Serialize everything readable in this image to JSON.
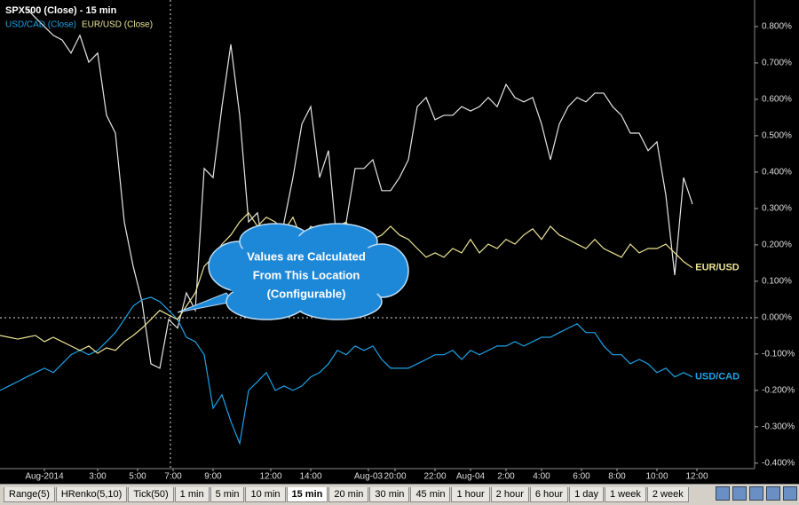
{
  "chart_data": {
    "type": "line",
    "title": "SPX500 (Close) - 15 min",
    "annotation": [
      "Values are Calculated",
      "From This Location",
      "(Configurable)"
    ],
    "x": [
      0,
      2,
      4,
      6,
      8,
      10,
      12,
      14,
      16,
      18,
      20,
      22,
      24,
      26,
      28,
      30,
      32,
      34,
      36,
      38,
      40,
      42,
      44,
      46,
      48,
      50,
      52,
      54,
      56,
      58,
      60,
      62,
      64,
      66,
      68,
      70,
      72,
      74,
      76,
      78,
      80,
      82,
      84,
      86,
      88,
      90,
      92,
      94,
      96,
      98,
      100,
      102,
      104,
      106,
      108,
      110,
      112,
      114,
      116,
      118,
      120,
      122,
      124,
      126,
      128,
      130,
      132,
      134,
      136,
      138,
      140,
      142,
      144,
      146,
      148,
      150,
      152,
      154,
      156
    ],
    "series": [
      {
        "color": "#e6e6e6",
        "values": [
          null,
          null,
          null,
          0.849,
          0.824,
          0.8,
          0.776,
          0.763,
          0.727,
          0.776,
          0.702,
          0.727,
          0.556,
          0.507,
          0.263,
          0.141,
          0.044,
          -0.127,
          -0.139,
          -0.005,
          -0.029,
          0.068,
          0.02,
          0.41,
          0.385,
          0.58,
          0.751,
          0.556,
          0.263,
          0.288,
          0.141,
          0.068,
          0.263,
          0.385,
          0.532,
          0.58,
          0.385,
          0.459,
          0.19,
          0.263,
          0.41,
          0.41,
          0.434,
          0.349,
          0.349,
          0.385,
          0.434,
          0.58,
          0.605,
          0.544,
          0.556,
          0.556,
          0.58,
          0.568,
          0.58,
          0.605,
          0.58,
          0.641,
          0.605,
          0.593,
          0.605,
          0.532,
          0.434,
          0.532,
          0.58,
          0.605,
          0.593,
          0.617,
          0.617,
          0.58,
          0.556,
          0.507,
          0.507,
          0.459,
          0.483,
          0.337,
          0.117,
          0.385,
          0.312
        ]
      },
      {
        "name": "USD/CAD (Close)",
        "end_label": "USD/CAD",
        "color": "#1fa3e8",
        "values": [
          -0.2,
          -0.188,
          -0.176,
          -0.163,
          -0.151,
          -0.139,
          -0.151,
          -0.127,
          -0.102,
          -0.09,
          -0.102,
          -0.09,
          -0.066,
          -0.041,
          -0.005,
          0.032,
          0.049,
          0.056,
          0.044,
          0.02,
          -0.005,
          -0.054,
          -0.066,
          -0.102,
          -0.249,
          -0.212,
          -0.285,
          -0.346,
          -0.2,
          -0.176,
          -0.151,
          -0.2,
          -0.188,
          -0.2,
          -0.188,
          -0.163,
          -0.151,
          -0.127,
          -0.09,
          -0.102,
          -0.078,
          -0.09,
          -0.078,
          -0.115,
          -0.139,
          -0.139,
          -0.139,
          -0.127,
          -0.115,
          -0.102,
          -0.102,
          -0.09,
          -0.115,
          -0.09,
          -0.102,
          -0.09,
          -0.078,
          -0.078,
          -0.066,
          -0.078,
          -0.066,
          -0.054,
          -0.054,
          -0.041,
          -0.029,
          -0.017,
          -0.041,
          -0.041,
          -0.078,
          -0.102,
          -0.102,
          -0.127,
          -0.115,
          -0.127,
          -0.151,
          -0.139,
          -0.163,
          -0.151,
          -0.163
        ]
      },
      {
        "name": "EUR/USD (Close)",
        "end_label": "EUR/USD",
        "color": "#ece494",
        "values": [
          -0.049,
          -0.054,
          -0.059,
          -0.054,
          -0.049,
          -0.066,
          -0.054,
          -0.066,
          -0.078,
          -0.09,
          -0.078,
          -0.098,
          -0.083,
          -0.09,
          -0.066,
          -0.049,
          -0.029,
          -0.005,
          0.02,
          0.007,
          -0.005,
          0.032,
          0.068,
          0.141,
          0.166,
          0.202,
          0.227,
          0.263,
          0.288,
          0.251,
          0.276,
          0.263,
          0.239,
          0.276,
          0.215,
          0.251,
          0.239,
          0.202,
          0.251,
          0.263,
          0.215,
          0.202,
          0.215,
          0.227,
          0.251,
          0.227,
          0.215,
          0.19,
          0.166,
          0.178,
          0.166,
          0.19,
          0.178,
          0.215,
          0.178,
          0.202,
          0.19,
          0.215,
          0.202,
          0.227,
          0.244,
          0.215,
          0.251,
          0.227,
          0.215,
          0.202,
          0.19,
          0.215,
          0.19,
          0.178,
          0.166,
          0.202,
          0.178,
          0.19,
          0.19,
          0.202,
          0.178,
          0.154,
          0.137
        ]
      }
    ],
    "xlim": [
      0,
      170
    ],
    "xticks": [
      {
        "value": 10,
        "label": "Aug-2014"
      },
      {
        "value": 22,
        "label": "3:00"
      },
      {
        "value": 31,
        "label": "5:00"
      },
      {
        "value": 39,
        "label": "7:00"
      },
      {
        "value": 48,
        "label": "9:00"
      },
      {
        "value": 61,
        "label": "12:00"
      },
      {
        "value": 70,
        "label": "14:00"
      },
      {
        "value": 83,
        "label": "Aug-03"
      },
      {
        "value": 89,
        "label": "20:00"
      },
      {
        "value": 98,
        "label": "22:00"
      },
      {
        "value": 106,
        "label": "Aug-04"
      },
      {
        "value": 114,
        "label": "2:00"
      },
      {
        "value": 122,
        "label": "4:00"
      },
      {
        "value": 131,
        "label": "6:00"
      },
      {
        "value": 139,
        "label": "8:00"
      },
      {
        "value": 148,
        "label": "10:00"
      },
      {
        "value": 157,
        "label": "12:00"
      }
    ],
    "ylim": [
      -0.415,
      0.873
    ],
    "yticks": [
      {
        "value": 0.8,
        "label": "0.800%"
      },
      {
        "value": 0.7,
        "label": "0.700%"
      },
      {
        "value": 0.6,
        "label": "0.600%"
      },
      {
        "value": 0.5,
        "label": "0.500%"
      },
      {
        "value": 0.4,
        "label": "0.400%"
      },
      {
        "value": 0.3,
        "label": "0.300%"
      },
      {
        "value": 0.2,
        "label": "0.200%"
      },
      {
        "value": 0.1,
        "label": "0.100%"
      },
      {
        "value": 0,
        "label": "0.000%"
      },
      {
        "value": -0.1,
        "label": "-0.100%"
      },
      {
        "value": -0.2,
        "label": "-0.200%"
      },
      {
        "value": -0.3,
        "label": "-0.300%"
      },
      {
        "value": -0.4,
        "label": "-0.400%"
      }
    ]
  },
  "tabs": [
    {
      "label": "Range(5)"
    },
    {
      "label": "HRenko(5,10)"
    },
    {
      "label": "Tick(50)"
    },
    {
      "label": "1 min"
    },
    {
      "label": "5 min"
    },
    {
      "label": "10 min"
    },
    {
      "label": "15 min",
      "active": true
    },
    {
      "label": "20 min"
    },
    {
      "label": "30 min"
    },
    {
      "label": "45 min"
    },
    {
      "label": "1 hour"
    },
    {
      "label": "2 hour"
    },
    {
      "label": "6 hour"
    },
    {
      "label": "1 day"
    },
    {
      "label": "1 week"
    },
    {
      "label": "2 week"
    }
  ]
}
